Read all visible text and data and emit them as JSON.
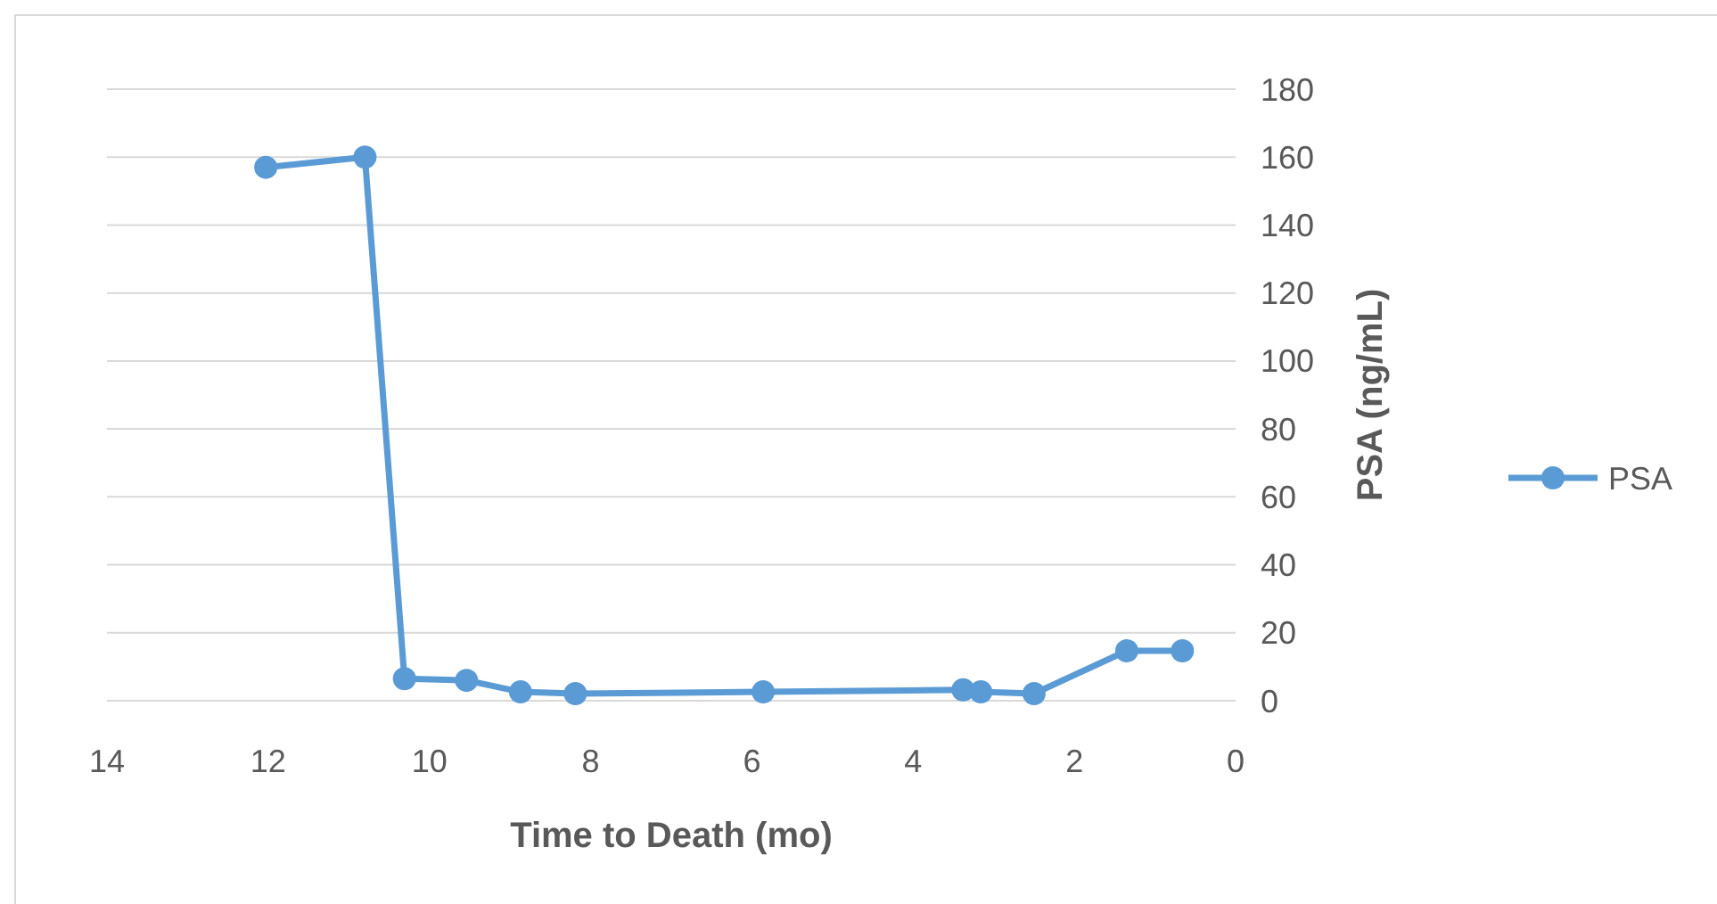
{
  "chart_data": {
    "type": "line",
    "xlabel": "Time to Death (mo)",
    "ylabel": "PSA (ng/mL)",
    "xlim": [
      14,
      0
    ],
    "xticks": [
      14,
      12,
      10,
      8,
      6,
      4,
      2,
      0
    ],
    "ylim": [
      0,
      180
    ],
    "yticks": [
      0,
      20,
      40,
      60,
      80,
      100,
      120,
      140,
      160,
      180
    ],
    "grid": "y",
    "legend": "right",
    "marker": "circle",
    "series": [
      {
        "name": "PSA",
        "color": "#5b9bd5",
        "x": [
          12.03,
          10.8,
          10.31,
          9.54,
          8.87,
          8.19,
          5.86,
          3.38,
          3.16,
          2.5,
          1.35,
          0.66
        ],
        "values": [
          157,
          160,
          6.5,
          6,
          2.6,
          2.1,
          2.6,
          3.2,
          2.6,
          2.1,
          14.7,
          14.7
        ]
      }
    ]
  }
}
